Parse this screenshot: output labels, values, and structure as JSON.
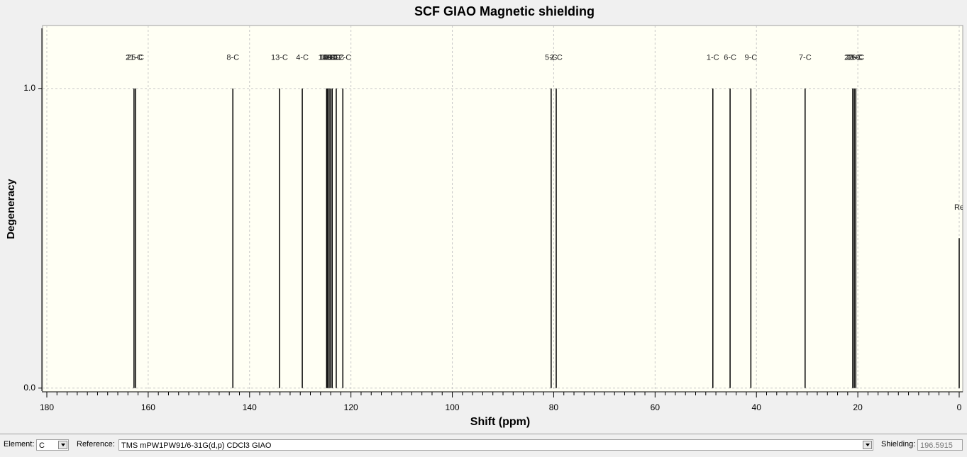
{
  "chart_data": {
    "type": "stick",
    "title": "SCF GIAO Magnetic shielding",
    "x_label": "Shift (ppm)",
    "y_label": "Degeneracy",
    "x": [
      162.8,
      162.5,
      143.3,
      134.1,
      129.6,
      124.8,
      124.6,
      124.3,
      124.0,
      123.7,
      122.9,
      121.6,
      80.5,
      79.5,
      48.6,
      45.2,
      41.1,
      30.4,
      21.0,
      20.7,
      20.4,
      0
    ],
    "values": [
      1,
      1,
      1,
      1,
      1,
      1,
      1,
      1,
      1,
      1,
      1,
      1,
      1,
      1,
      1,
      1,
      1,
      1,
      1,
      1,
      1,
      0.5
    ],
    "labels": [
      "21-C",
      "25-C",
      "8-C",
      "13-C",
      "4-C",
      "14-C",
      "19-C",
      "18-C",
      "16-C",
      "10-C",
      "11-C",
      "12-C",
      "5-C",
      "2-C",
      "1-C",
      "6-C",
      "9-C",
      "7-C",
      "22-C",
      "23-C",
      "26-C",
      "Re"
    ],
    "color": "#000000",
    "xlim": [
      180,
      0
    ],
    "xticks": [
      180,
      160,
      140,
      120,
      100,
      80,
      60,
      40,
      20,
      0
    ],
    "ylim": [
      -0.01,
      1.21
    ],
    "yticks": [
      {
        "value": 0,
        "label": "0.0"
      },
      {
        "value": 1,
        "label": "1.0"
      }
    ],
    "grid": true
  },
  "controls": {
    "element_label": "Element:",
    "element_value": "C",
    "reference_label": "Reference:",
    "reference_value": "TMS mPW1PW91/6-31G(d,p) CDCl3 GIAO",
    "shielding_label": "Shielding:",
    "shielding_value": "196.5915"
  }
}
